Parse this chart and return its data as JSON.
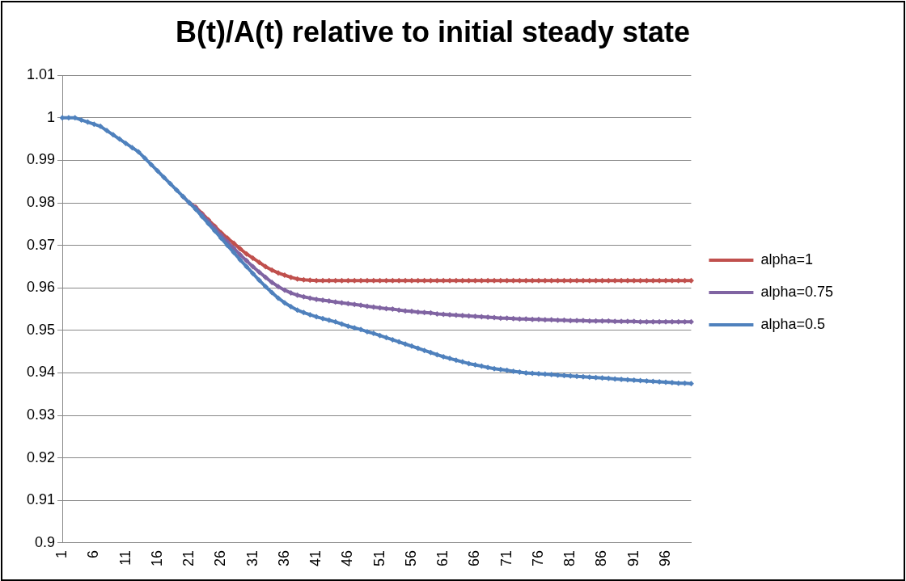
{
  "chart_data": {
    "type": "line",
    "title": "B(t)/A(t) relative to initial steady state",
    "categories": [
      "1",
      null,
      null,
      null,
      null,
      "6",
      null,
      null,
      null,
      null,
      "11",
      null,
      null,
      null,
      null,
      "16",
      null,
      null,
      null,
      null,
      "21",
      null,
      null,
      null,
      null,
      "26",
      null,
      null,
      null,
      null,
      "31",
      null,
      null,
      null,
      null,
      "36",
      null,
      null,
      null,
      null,
      "41",
      null,
      null,
      null,
      null,
      "46",
      null,
      null,
      null,
      null,
      "51",
      null,
      null,
      null,
      null,
      "56",
      null,
      null,
      null,
      null,
      "61",
      null,
      null,
      null,
      null,
      "66",
      null,
      null,
      null,
      null,
      "71",
      null,
      null,
      null,
      null,
      "76",
      null,
      null,
      null,
      null,
      "81",
      null,
      null,
      null,
      null,
      "86",
      null,
      null,
      null,
      null,
      "91",
      null,
      null,
      null,
      null,
      "96",
      null,
      null,
      null,
      null
    ],
    "series": [
      {
        "name": "alpha=1",
        "color": "#c0504d",
        "values": [
          null,
          null,
          null,
          null,
          null,
          null,
          null,
          null,
          null,
          null,
          null,
          null,
          null,
          null,
          null,
          null,
          null,
          null,
          null,
          null,
          0.98,
          0.979,
          0.9775,
          0.976,
          0.9745,
          0.973,
          0.9717,
          0.9705,
          0.9692,
          0.968,
          0.967,
          0.966,
          0.965,
          0.9642,
          0.9635,
          0.963,
          0.9625,
          0.9621,
          0.9619,
          0.9618,
          0.9617,
          0.9617,
          0.9617,
          0.9617,
          0.9617,
          0.9617,
          0.9617,
          0.9617,
          0.9617,
          0.9617,
          0.9617,
          0.9617,
          0.9617,
          0.9617,
          0.9617,
          0.9617,
          0.9617,
          0.9617,
          0.9617,
          0.9617,
          0.9617,
          0.9617,
          0.9617,
          0.9617,
          0.9617,
          0.9617,
          0.9617,
          0.9617,
          0.9617,
          0.9617,
          0.9617,
          0.9617,
          0.9617,
          0.9617,
          0.9617,
          0.9617,
          0.9617,
          0.9617,
          0.9617,
          0.9617,
          0.9617,
          0.9617,
          0.9617,
          0.9617,
          0.9617,
          0.9617,
          0.9617,
          0.9617,
          0.9617,
          0.9617,
          0.9617,
          0.9617,
          0.9617,
          0.9617,
          0.9617,
          0.9617,
          0.9617,
          0.9617,
          0.9617,
          0.9617
        ]
      },
      {
        "name": "alpha=0.75",
        "color": "#8064a2",
        "values": [
          null,
          null,
          null,
          null,
          null,
          null,
          null,
          null,
          null,
          null,
          null,
          null,
          null,
          null,
          null,
          null,
          null,
          null,
          null,
          0.9815,
          0.98,
          0.9788,
          0.9772,
          0.9756,
          0.974,
          0.9724,
          0.9708,
          0.9693,
          0.9678,
          0.9664,
          0.965,
          0.9637,
          0.9625,
          0.9613,
          0.9603,
          0.9595,
          0.9588,
          0.9583,
          0.9579,
          0.9576,
          0.9573,
          0.9571,
          0.9569,
          0.9567,
          0.9565,
          0.9563,
          0.9561,
          0.9559,
          0.9557,
          0.9555,
          0.9553,
          0.9551,
          0.955,
          0.9548,
          0.9546,
          0.9545,
          0.9543,
          0.9542,
          0.9541,
          0.9539,
          0.9538,
          0.9537,
          0.9536,
          0.9535,
          0.9534,
          0.9533,
          0.9532,
          0.9531,
          0.953,
          0.9529,
          0.9529,
          0.9528,
          0.9527,
          0.9527,
          0.9526,
          0.9526,
          0.9525,
          0.9525,
          0.9524,
          0.9524,
          0.9523,
          0.9523,
          0.9523,
          0.9522,
          0.9522,
          0.9522,
          0.9522,
          0.9521,
          0.9521,
          0.9521,
          0.9521,
          0.952,
          0.952,
          0.952,
          0.952,
          0.952,
          0.952,
          0.952,
          0.952,
          0.952
        ]
      },
      {
        "name": "alpha=0.5",
        "color": "#4f81bd",
        "values": [
          1,
          1,
          1,
          0.9995,
          0.999,
          0.9985,
          0.998,
          0.997,
          0.996,
          0.995,
          0.994,
          0.993,
          0.992,
          0.9905,
          0.989,
          0.9875,
          0.986,
          0.9845,
          0.983,
          0.9815,
          0.98,
          0.9785,
          0.9768,
          0.9751,
          0.9734,
          0.9717,
          0.97,
          0.9683,
          0.9666,
          0.965,
          0.9634,
          0.9618,
          0.9603,
          0.9589,
          0.9576,
          0.9565,
          0.9556,
          0.9548,
          0.9542,
          0.9537,
          0.9532,
          0.9528,
          0.9524,
          0.952,
          0.9515,
          0.951,
          0.9506,
          0.9502,
          0.9497,
          0.9493,
          0.9488,
          0.9483,
          0.9478,
          0.9473,
          0.9468,
          0.9463,
          0.9458,
          0.9453,
          0.9448,
          0.9443,
          0.9438,
          0.9434,
          0.943,
          0.9426,
          0.9422,
          0.9419,
          0.9416,
          0.9413,
          0.941,
          0.9408,
          0.9406,
          0.9404,
          0.9402,
          0.94,
          0.9399,
          0.9398,
          0.9397,
          0.9396,
          0.9395,
          0.9394,
          0.9393,
          0.9392,
          0.9391,
          0.939,
          0.9389,
          0.9388,
          0.9387,
          0.9386,
          0.9385,
          0.9384,
          0.9383,
          0.9382,
          0.9381,
          0.938,
          0.9379,
          0.9378,
          0.9377,
          0.9376,
          0.9376,
          0.9375
        ]
      }
    ],
    "ylim": [
      0.9,
      1.01
    ],
    "yticks": [
      0.9,
      0.91,
      0.92,
      0.93,
      0.94,
      0.95,
      0.96,
      0.97,
      0.98,
      0.99,
      1,
      1.01
    ],
    "grid": "y",
    "legend": "right",
    "marker": "diamond",
    "line_style": "solid"
  }
}
